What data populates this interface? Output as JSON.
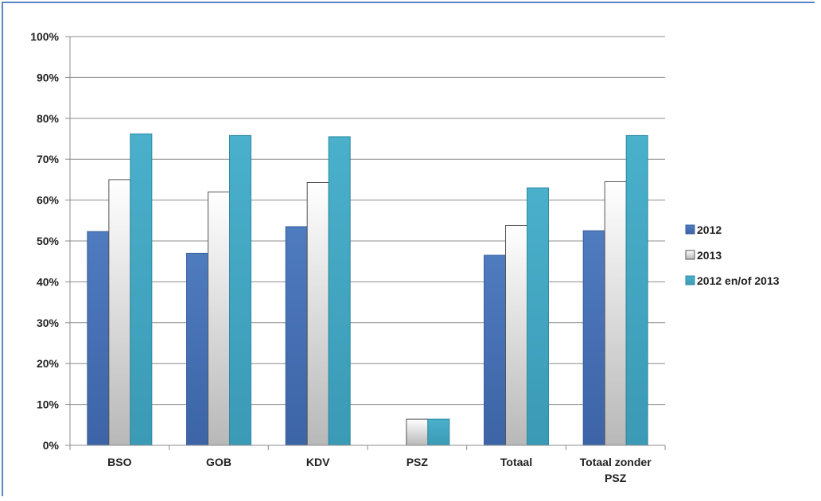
{
  "chart_data": {
    "type": "bar",
    "categories": [
      "BSO",
      "GOB",
      "KDV",
      "PSZ",
      "Totaal",
      "Totaal zonder PSZ"
    ],
    "series": [
      {
        "name": "2012",
        "values": [
          52.3,
          47.0,
          53.5,
          0,
          46.5,
          52.5
        ],
        "color": "#4f7bbf"
      },
      {
        "name": "2013",
        "values": [
          65.0,
          62.0,
          64.3,
          6.4,
          53.8,
          64.5
        ],
        "color": "#e8e8e8"
      },
      {
        "name": "2012 en/of 2013",
        "values": [
          76.2,
          75.8,
          75.5,
          6.4,
          63.0,
          75.8
        ],
        "color": "#4aaac6"
      }
    ],
    "ylim": [
      0,
      100
    ],
    "yticks": [
      "0%",
      "10%",
      "20%",
      "30%",
      "40%",
      "50%",
      "60%",
      "70%",
      "80%",
      "90%",
      "100%"
    ],
    "grid": true,
    "legend": "right",
    "title": "",
    "xlabel": "",
    "ylabel": ""
  }
}
